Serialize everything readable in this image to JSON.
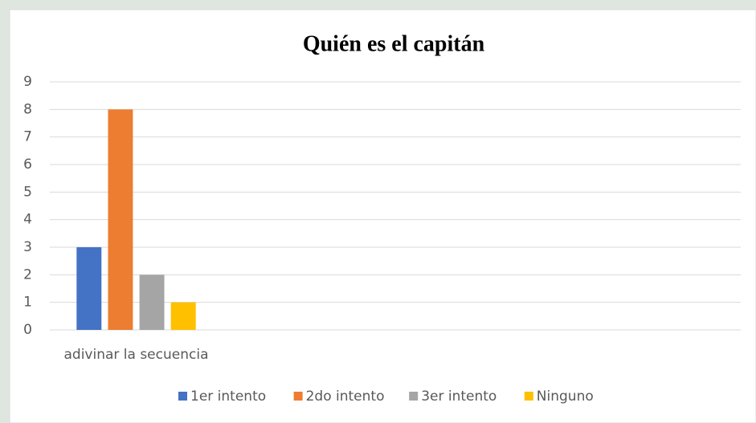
{
  "chart_data": {
    "type": "bar",
    "title": "Quién es el capitán",
    "categories": [
      "adivinar la secuencia",
      null,
      null,
      null
    ],
    "series": [
      {
        "name": "1er intento",
        "color": "#4472c4",
        "values": [
          3,
          null,
          null,
          null
        ]
      },
      {
        "name": "2do intento",
        "color": "#ed7d31",
        "values": [
          8,
          null,
          null,
          null
        ]
      },
      {
        "name": "3er intento",
        "color": "#a5a5a5",
        "values": [
          2,
          null,
          null,
          null
        ]
      },
      {
        "name": "Ninguno",
        "color": "#ffc000",
        "values": [
          1,
          null,
          null,
          null
        ]
      }
    ],
    "ylim": [
      0,
      9
    ],
    "yticks": [
      0,
      1,
      2,
      3,
      4,
      5,
      6,
      7,
      8,
      9
    ],
    "grid": true,
    "legend": "bottom"
  }
}
